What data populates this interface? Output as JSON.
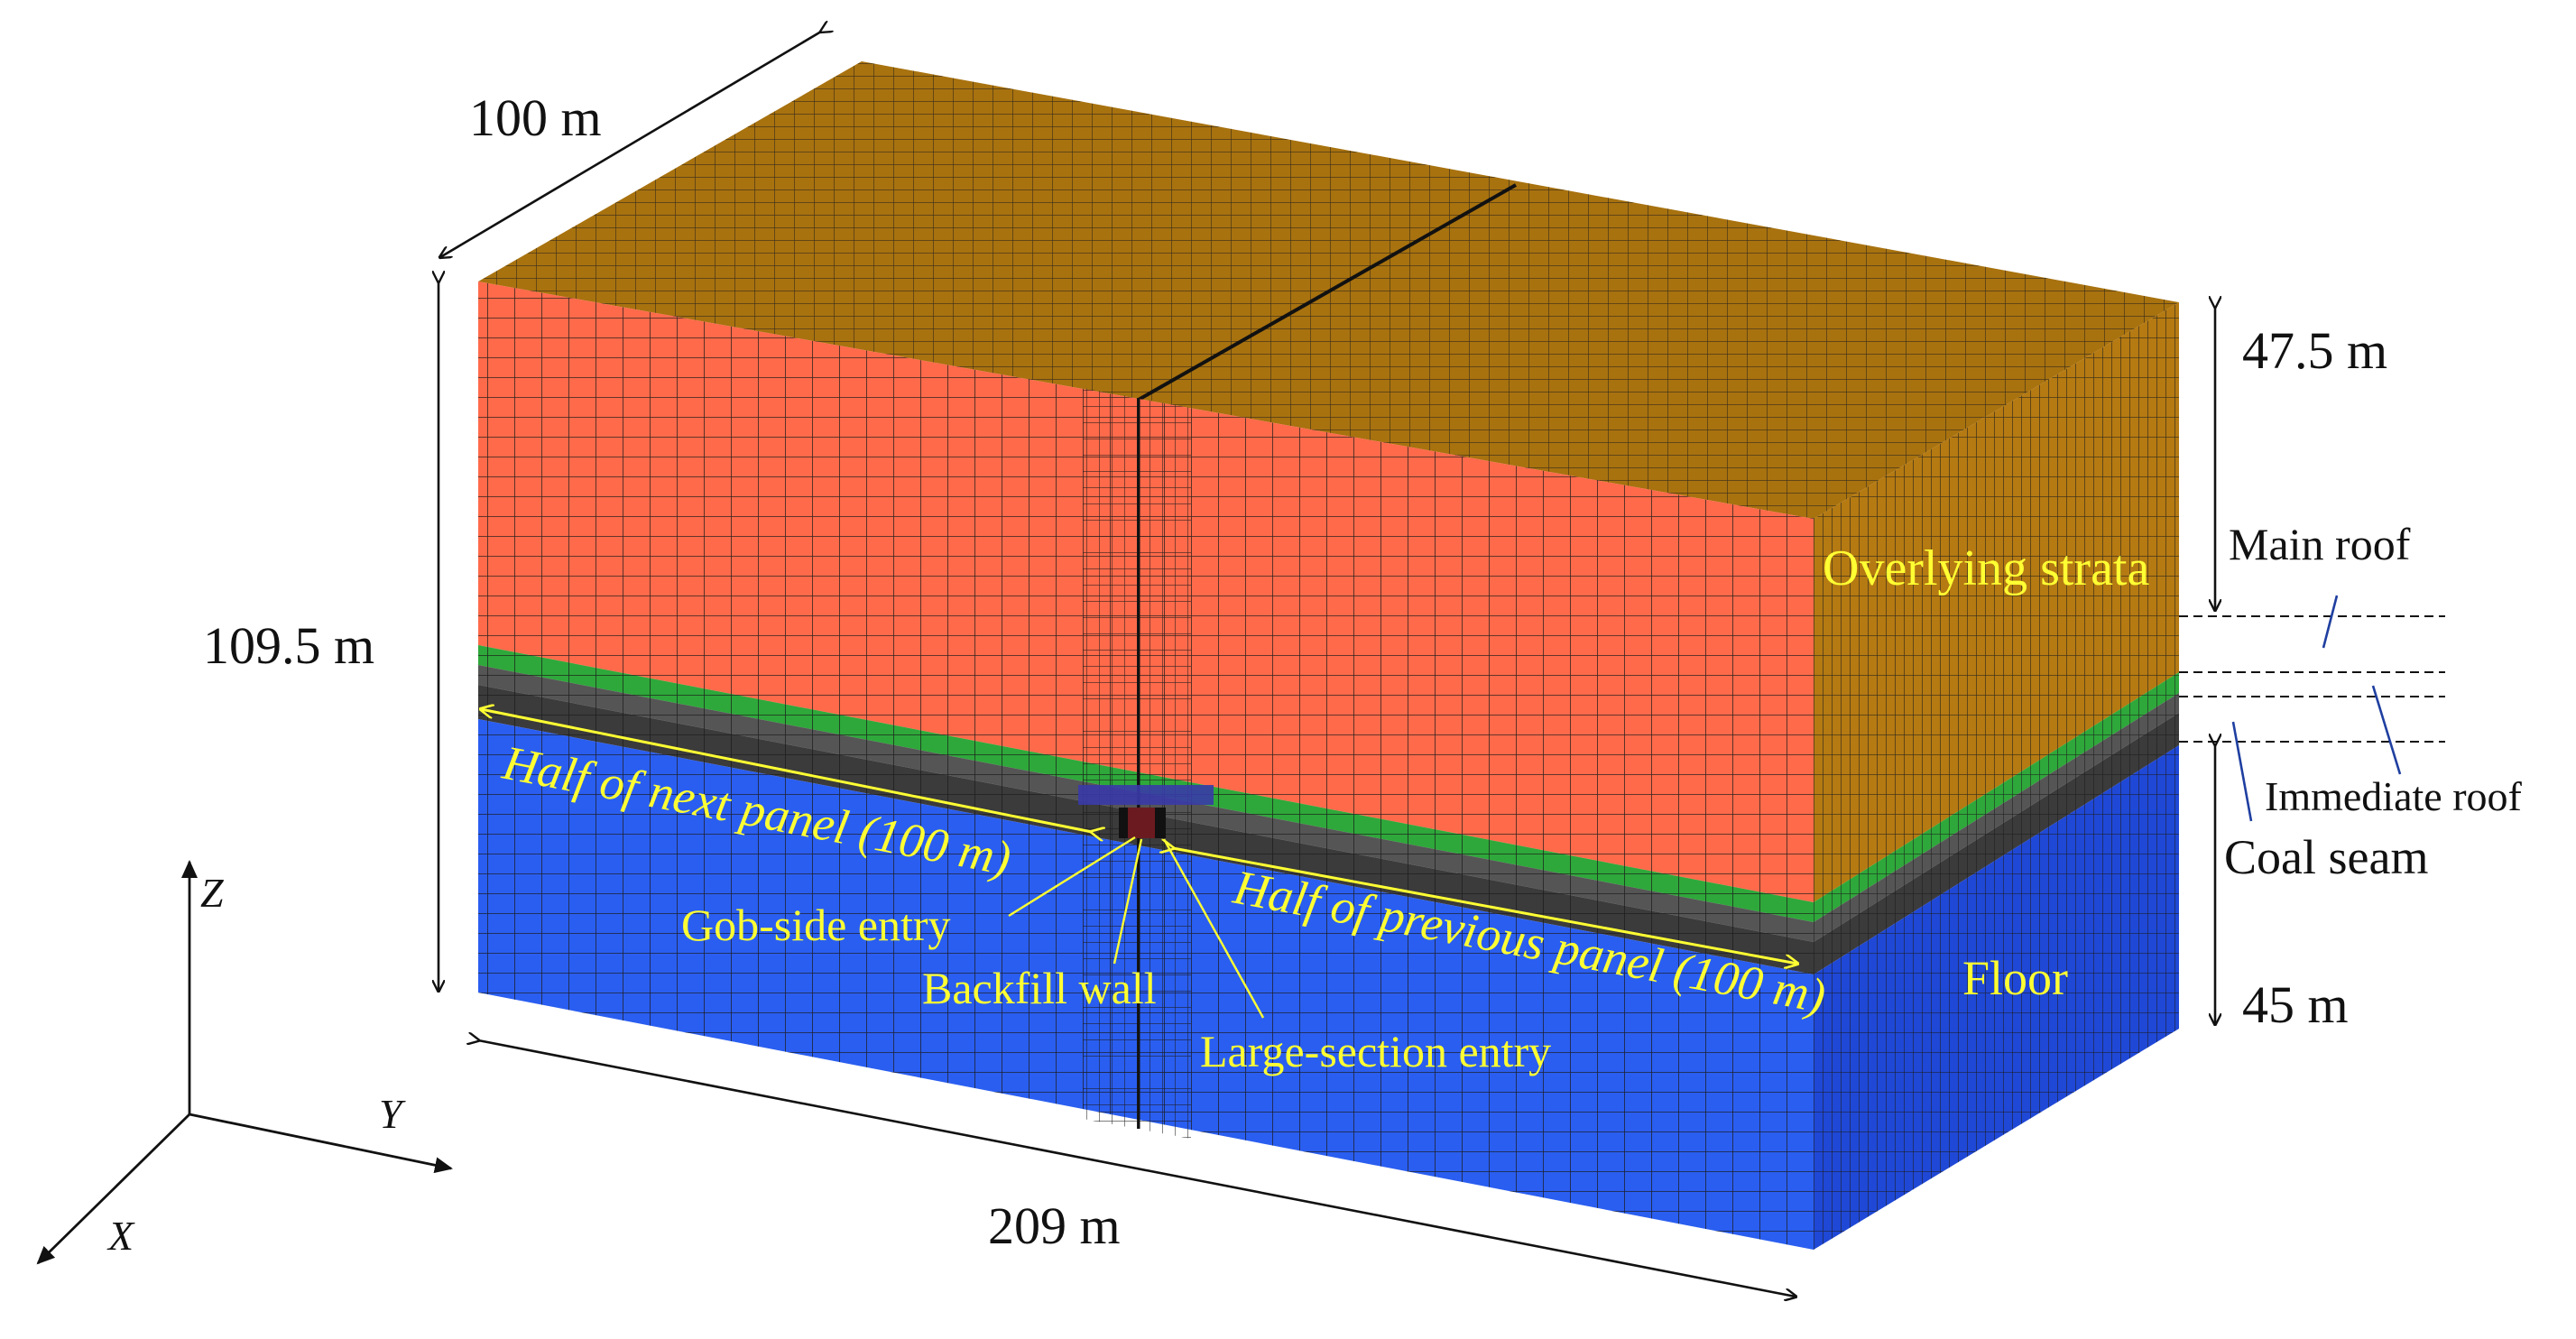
{
  "dimensions": {
    "depth": "100 m",
    "height": "109.5 m",
    "length": "209 m",
    "overlying_thickness": "47.5 m",
    "floor_thickness": "45 m"
  },
  "strata": {
    "overlying": "Overlying strata",
    "main_roof": "Main roof",
    "immediate_roof": "Immediate roof",
    "coal_seam": "Coal seam",
    "floor": "Floor"
  },
  "panels": {
    "next": "Half of next panel (100 m)",
    "previous": "Half of previous panel (100 m)"
  },
  "entries": {
    "gob_side": "Gob-side entry",
    "backfill": "Backfill wall",
    "large_section": "Large-section entry"
  },
  "axes": {
    "x": "X",
    "y": "Y",
    "z": "Z"
  },
  "colors": {
    "overlying_front": "#ff6a4a",
    "overlying_side": "#b57a12",
    "top_face": "#a8720f",
    "main_roof": "#2ea83a",
    "immediate_roof": "#555555",
    "coal_seam": "#3b3b3b",
    "floor_front": "#2a5ef0",
    "floor_side": "#1f48d6",
    "annotation_yellow": "#ffff33"
  }
}
